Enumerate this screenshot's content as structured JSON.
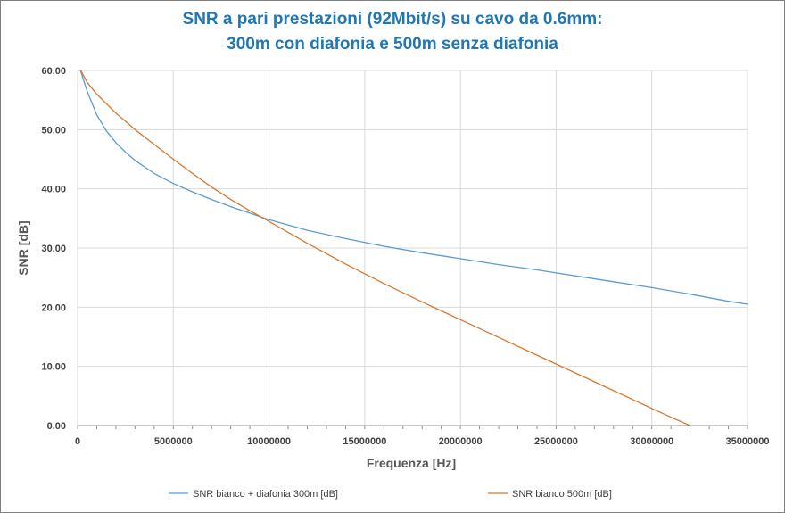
{
  "chart_data": {
    "type": "line",
    "title": [
      "SNR a pari prestazioni (92Mbit/s) su cavo da 0.6mm:",
      "300m con diafonia e 500m senza diafonia"
    ],
    "xlabel": "Frequenza [Hz]",
    "ylabel": "SNR [dB]",
    "xlim": [
      0,
      35000000
    ],
    "ylim": [
      0,
      60
    ],
    "xticks": [
      0,
      5000000,
      10000000,
      15000000,
      20000000,
      25000000,
      30000000,
      35000000
    ],
    "xtick_labels": [
      "0",
      "5000000",
      "10000000",
      "15000000",
      "20000000",
      "25000000",
      "30000000",
      "35000000"
    ],
    "yticks": [
      0,
      10,
      20,
      30,
      40,
      50,
      60
    ],
    "ytick_labels": [
      "0.00",
      "10.00",
      "20.00",
      "30.00",
      "40.00",
      "50.00",
      "60.00"
    ],
    "grid": true,
    "legend_position": "bottom",
    "series": [
      {
        "name": "SNR bianco + diafonia 300m [dB]",
        "color": "#5b9bd5",
        "x": [
          0,
          500000,
          1000000,
          1500000,
          2000000,
          2500000,
          3000000,
          4000000,
          5000000,
          6000000,
          7000000,
          8000000,
          9000000,
          10000000,
          12000000,
          14000000,
          16000000,
          18000000,
          20000000,
          22000000,
          24000000,
          26000000,
          28000000,
          30000000,
          32000000,
          34000000,
          35000000
        ],
        "y": [
          61.5,
          56.5,
          52.5,
          49.8,
          47.8,
          46.2,
          44.8,
          42.6,
          40.9,
          39.5,
          38.2,
          37.0,
          35.9,
          34.8,
          33.0,
          31.6,
          30.3,
          29.2,
          28.2,
          27.2,
          26.3,
          25.3,
          24.3,
          23.3,
          22.2,
          21.0,
          20.5
        ]
      },
      {
        "name": "SNR bianco 500m [dB]",
        "color": "#d9782d",
        "x": [
          0,
          500000,
          1000000,
          2000000,
          3000000,
          4000000,
          5000000,
          6000000,
          7000000,
          8000000,
          9000000,
          10000000,
          12000000,
          14000000,
          16000000,
          18000000,
          20000000,
          22000000,
          24000000,
          26000000,
          28000000,
          30000000,
          31000000,
          32000000
        ],
        "y": [
          61.0,
          58.0,
          56.0,
          52.8,
          50.0,
          47.5,
          45.0,
          42.6,
          40.3,
          38.2,
          36.3,
          34.5,
          30.8,
          27.3,
          24.0,
          20.9,
          17.9,
          14.9,
          11.9,
          8.9,
          5.9,
          2.9,
          1.4,
          0.0
        ]
      }
    ]
  }
}
